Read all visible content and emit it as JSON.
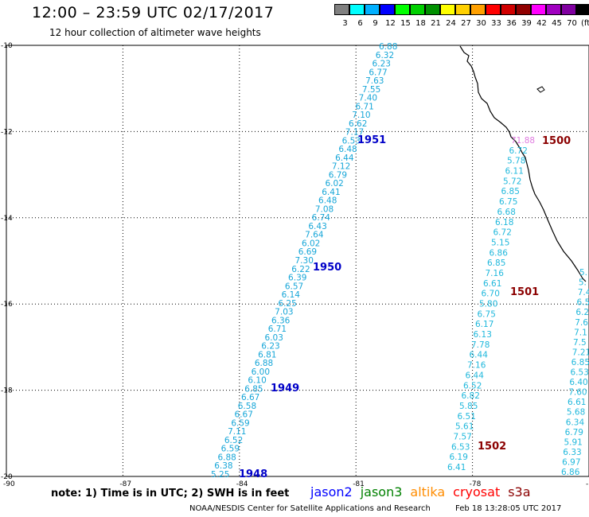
{
  "header": {
    "title": "12:00 – 23:59 UTC 02/17/2017",
    "subtitle": "12 hour collection of altimeter wave heights"
  },
  "colorbar": {
    "colors": [
      "#808080",
      "#00ffff",
      "#00b0ff",
      "#0000ff",
      "#00ff00",
      "#00d000",
      "#009000",
      "#ffff00",
      "#ffd000",
      "#ffa000",
      "#ff0000",
      "#d00000",
      "#900000",
      "#ff00ff",
      "#a000c0",
      "#8000a0",
      "#000000"
    ],
    "labels": [
      "3",
      "6",
      "9",
      "12",
      "15",
      "18",
      "21",
      "24",
      "27",
      "30",
      "33",
      "36",
      "39",
      "42",
      "45",
      "70",
      "(ft)"
    ]
  },
  "axes": {
    "x_ticks": [
      "-90",
      "-87",
      "-84",
      "-81",
      "-78",
      "-75"
    ],
    "y_ticks": [
      "-10",
      "-12",
      "-14",
      "-16",
      "-18",
      "-20"
    ]
  },
  "map_data": {
    "lon_range": [
      -90,
      -75
    ],
    "lat_range": [
      -20,
      -10
    ],
    "coastline_present": true,
    "passes": [
      {
        "id": "1951",
        "color": "#0000c8"
      },
      {
        "id": "1950",
        "color": "#0000c8"
      },
      {
        "id": "1949",
        "color": "#0000c8"
      },
      {
        "id": "1948",
        "color": "#0000c8"
      },
      {
        "id": "1500",
        "color": "#8b0000"
      },
      {
        "id": "1501",
        "color": "#8b0000"
      },
      {
        "id": "1502",
        "color": "#8b0000"
      }
    ],
    "track_a_values": [
      "6.88",
      "6.32",
      "6.23",
      "6.77",
      "7.63",
      "7.55",
      "7.40",
      "6.71",
      "7.10",
      "6.62",
      "7.17",
      "6.53",
      "6.48",
      "6.44",
      "7.12",
      "6.79",
      "6.02",
      "6.41",
      "6.48",
      "7.08",
      "6.74",
      "6.43",
      "7.64",
      "6.02",
      "6.69",
      "7.30",
      "6.22",
      "6.39",
      "6.57",
      "6.14",
      "6.25",
      "7.03",
      "6.36",
      "6.71",
      "6.03",
      "6.23",
      "6.81",
      "6.88",
      "6.00",
      "6.10",
      "6.85",
      "6.67",
      "6.58",
      "6.67",
      "6.59",
      "7.11",
      "6.52",
      "6.59",
      "6.88",
      "6.38",
      "5.25"
    ],
    "track_b_values": [
      "71.88",
      "6.72",
      "5.78",
      "6.11",
      "5.72",
      "6.85",
      "6.75",
      "6.68",
      "6.18",
      "6.72",
      "5.15",
      "6.86",
      "6.85",
      "7.16",
      "6.61",
      "6.70",
      "5.80",
      "6.75",
      "6.17",
      "6.13",
      "7.78",
      "6.44",
      "7.16",
      "6.44",
      "6.52",
      "6.82",
      "5.85",
      "6.51",
      "5.61",
      "7.57",
      "6.53",
      "6.19",
      "6.41"
    ],
    "track_c_values": [
      "5.",
      "5.",
      "7.4",
      "6.5",
      "6.2",
      "7.6",
      "7.1",
      "7.5",
      "7.21",
      "6.85",
      "6.53",
      "6.40",
      "7.60",
      "6.61",
      "5.68",
      "6.34",
      "6.79",
      "5.91",
      "6.33",
      "6.97",
      "6.86"
    ]
  },
  "note": "note: 1) Time is in UTC; 2) SWH is in feet",
  "legend": [
    {
      "label": "jason2",
      "color": "#0000ff"
    },
    {
      "label": "jason3",
      "color": "#008000"
    },
    {
      "label": "altika",
      "color": "#ff8c00"
    },
    {
      "label": "cryosat",
      "color": "#ff0000"
    },
    {
      "label": "s3a",
      "color": "#8b0000"
    }
  ],
  "footer": {
    "credit": "NOAA/NESDIS Center for Satellite Applications and Research",
    "timestamp": "Feb 18 13:28:05 UTC 2017"
  }
}
